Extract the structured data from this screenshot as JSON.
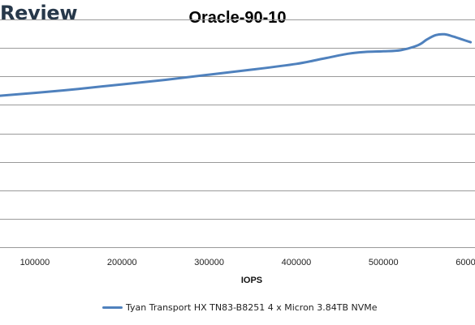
{
  "brand": "Review",
  "colors": {
    "series": "#4f81bd",
    "gridline": "#9a9a9a",
    "brand": "#27384a"
  },
  "chart_data": {
    "type": "line",
    "title": "Oracle-90-10",
    "xlabel": "IOPS",
    "ylabel": "",
    "xlim": [
      60000,
      605000
    ],
    "ylim": [
      0,
      8
    ],
    "xticks": [
      100000,
      200000,
      300000,
      400000,
      500000,
      600000
    ],
    "grid": true,
    "legend_position": "bottom",
    "series": [
      {
        "name": "Tyan Transport HX TN83-B8251 4 x Micron 3.84TB NVMe",
        "x": [
          60000,
          100000,
          150000,
          200000,
          250000,
          300000,
          350000,
          400000,
          430000,
          460000,
          480000,
          500000,
          520000,
          540000,
          550000,
          560000,
          570000,
          580000,
          590000,
          600000
        ],
        "y": [
          5.32,
          5.42,
          5.56,
          5.72,
          5.88,
          6.06,
          6.24,
          6.44,
          6.62,
          6.8,
          6.86,
          6.88,
          6.92,
          7.1,
          7.3,
          7.45,
          7.48,
          7.4,
          7.3,
          7.2
        ]
      }
    ]
  }
}
